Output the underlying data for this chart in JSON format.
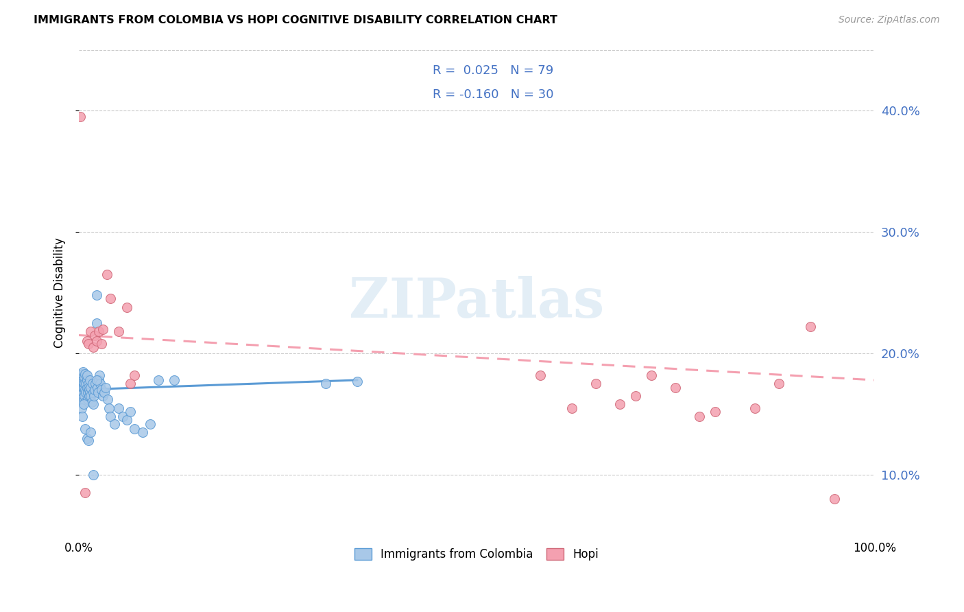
{
  "title": "IMMIGRANTS FROM COLOMBIA VS HOPI COGNITIVE DISABILITY CORRELATION CHART",
  "source": "Source: ZipAtlas.com",
  "ylabel": "Cognitive Disability",
  "r_colombia": 0.025,
  "n_colombia": 79,
  "r_hopi": -0.16,
  "n_hopi": 30,
  "color_colombia": "#a8c8e8",
  "color_hopi": "#f4a0b0",
  "color_line_colombia": "#5b9bd5",
  "color_line_hopi": "#f4a0b0",
  "color_accent": "#4472c4",
  "watermark": "ZIPatlas",
  "colombia_scatter_x": [
    0.001,
    0.002,
    0.002,
    0.003,
    0.003,
    0.003,
    0.004,
    0.004,
    0.004,
    0.005,
    0.005,
    0.005,
    0.005,
    0.006,
    0.006,
    0.006,
    0.007,
    0.007,
    0.007,
    0.008,
    0.008,
    0.008,
    0.009,
    0.009,
    0.01,
    0.01,
    0.01,
    0.011,
    0.011,
    0.012,
    0.012,
    0.013,
    0.013,
    0.014,
    0.014,
    0.015,
    0.015,
    0.016,
    0.017,
    0.018,
    0.018,
    0.019,
    0.02,
    0.021,
    0.022,
    0.022,
    0.023,
    0.024,
    0.025,
    0.026,
    0.027,
    0.028,
    0.03,
    0.032,
    0.034,
    0.036,
    0.038,
    0.04,
    0.045,
    0.05,
    0.055,
    0.06,
    0.065,
    0.07,
    0.08,
    0.09,
    0.1,
    0.12,
    0.31,
    0.35,
    0.003,
    0.004,
    0.006,
    0.008,
    0.01,
    0.012,
    0.015,
    0.018,
    0.022
  ],
  "colombia_scatter_y": [
    0.172,
    0.178,
    0.168,
    0.181,
    0.175,
    0.165,
    0.183,
    0.17,
    0.16,
    0.176,
    0.172,
    0.168,
    0.185,
    0.178,
    0.162,
    0.171,
    0.18,
    0.175,
    0.165,
    0.183,
    0.17,
    0.16,
    0.175,
    0.168,
    0.172,
    0.178,
    0.182,
    0.168,
    0.162,
    0.175,
    0.172,
    0.165,
    0.17,
    0.178,
    0.168,
    0.172,
    0.165,
    0.16,
    0.175,
    0.168,
    0.158,
    0.165,
    0.17,
    0.175,
    0.248,
    0.225,
    0.172,
    0.168,
    0.178,
    0.182,
    0.175,
    0.17,
    0.165,
    0.168,
    0.172,
    0.162,
    0.155,
    0.148,
    0.142,
    0.155,
    0.148,
    0.145,
    0.152,
    0.138,
    0.135,
    0.142,
    0.178,
    0.178,
    0.175,
    0.177,
    0.155,
    0.148,
    0.158,
    0.138,
    0.13,
    0.128,
    0.135,
    0.1,
    0.178
  ],
  "hopi_scatter_x": [
    0.002,
    0.008,
    0.01,
    0.012,
    0.015,
    0.018,
    0.02,
    0.022,
    0.025,
    0.028,
    0.03,
    0.035,
    0.04,
    0.05,
    0.06,
    0.065,
    0.07,
    0.58,
    0.62,
    0.65,
    0.68,
    0.7,
    0.72,
    0.75,
    0.78,
    0.8,
    0.85,
    0.88,
    0.92,
    0.95
  ],
  "hopi_scatter_y": [
    0.395,
    0.085,
    0.21,
    0.208,
    0.218,
    0.205,
    0.215,
    0.21,
    0.218,
    0.208,
    0.22,
    0.265,
    0.245,
    0.218,
    0.238,
    0.175,
    0.182,
    0.182,
    0.155,
    0.175,
    0.158,
    0.165,
    0.182,
    0.172,
    0.148,
    0.152,
    0.155,
    0.175,
    0.222,
    0.08
  ],
  "xlim": [
    0.0,
    1.0
  ],
  "ylim": [
    0.05,
    0.45
  ],
  "yticks": [
    0.1,
    0.2,
    0.3,
    0.4
  ],
  "ytick_labels": [
    "10.0%",
    "20.0%",
    "30.0%",
    "40.0%"
  ],
  "colombia_line_x": [
    0.0,
    0.35
  ],
  "colombia_line_y": [
    0.17,
    0.178
  ],
  "hopi_line_x": [
    0.0,
    1.0
  ],
  "hopi_line_y": [
    0.215,
    0.178
  ]
}
